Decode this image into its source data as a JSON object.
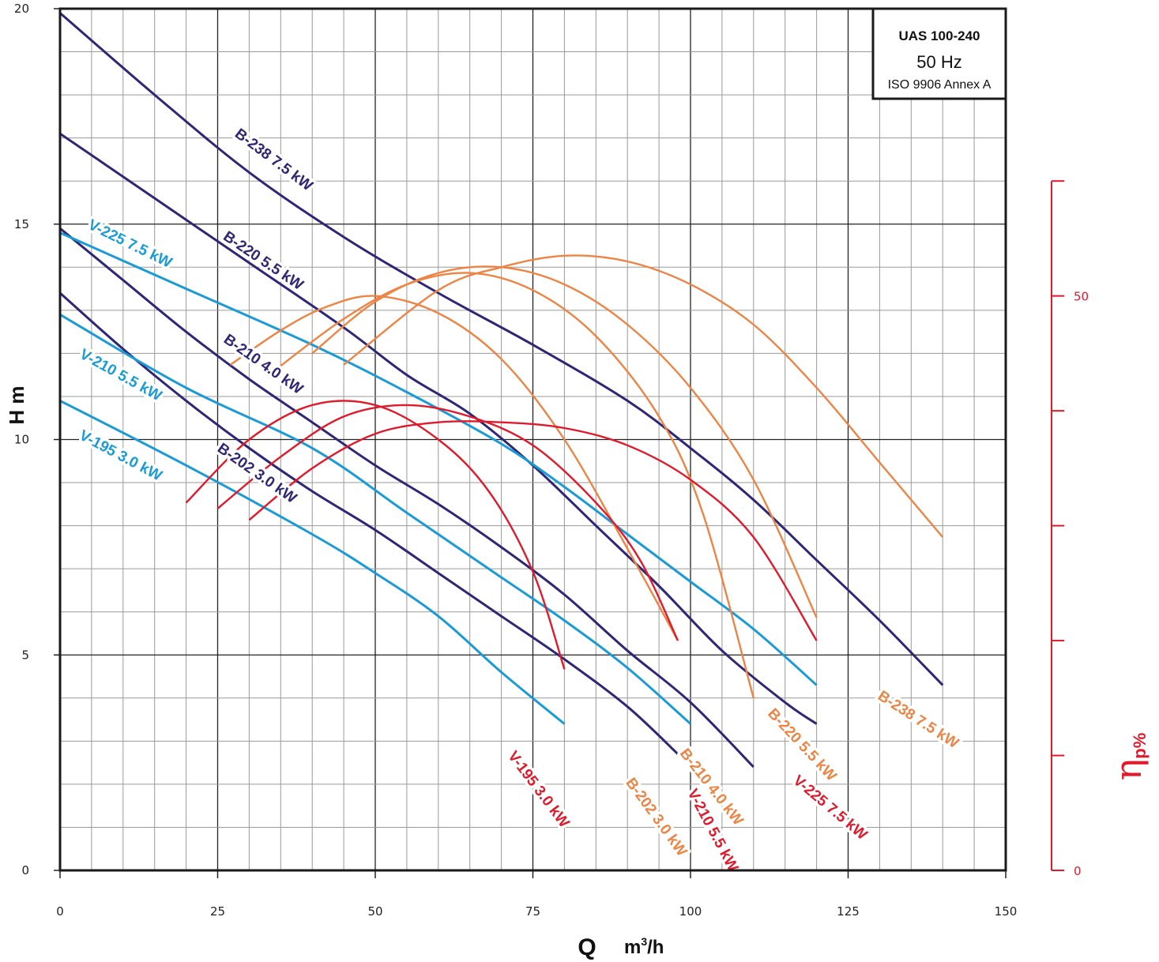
{
  "chart_data": {
    "type": "line",
    "info_box": {
      "model": "UAS 100-240",
      "frequency": "50 Hz",
      "standard": "ISO 9906 Annex A"
    },
    "xlabel": {
      "symbol": "Q",
      "unit": "m³/h",
      "unit_base": "m",
      "unit_sup": "3",
      "unit_rest": "/h"
    },
    "ylabel": "H m",
    "y2label": {
      "base": "η",
      "sub": "p%"
    },
    "xlim": [
      0,
      150
    ],
    "ylim": [
      0,
      20
    ],
    "y2lim": [
      0,
      60
    ],
    "x_ticks": [
      "0",
      "25",
      "50",
      "75",
      "100",
      "125",
      "150"
    ],
    "y_ticks": [
      "0",
      "5",
      "10",
      "15",
      "20"
    ],
    "y2_ticks": [
      "0",
      "50"
    ],
    "grid": true,
    "colors": {
      "B_head": "#2e2777",
      "V_head": "#1a9bd7",
      "B_eff": "#ee8444",
      "V_eff": "#e01a2b"
    },
    "head_curves": [
      {
        "name": "B-238 7.5 kW",
        "color": "#2e2777",
        "x": [
          0,
          15,
          30,
          45,
          60,
          75,
          90,
          100,
          110,
          120,
          130,
          140
        ],
        "y": [
          19.9,
          18.0,
          16.2,
          14.7,
          13.4,
          12.2,
          10.9,
          9.8,
          8.6,
          7.2,
          5.8,
          4.3
        ]
      },
      {
        "name": "B-220 5.5 kW",
        "color": "#2e2777",
        "x": [
          0,
          15,
          30,
          45,
          55,
          65,
          75,
          85,
          95,
          105,
          115,
          120
        ],
        "y": [
          17.1,
          15.6,
          14.1,
          12.6,
          11.5,
          10.6,
          9.4,
          8.0,
          6.6,
          5.1,
          3.9,
          3.4
        ]
      },
      {
        "name": "B-210 4.0 kW",
        "color": "#2e2777",
        "x": [
          0,
          10,
          20,
          30,
          40,
          50,
          60,
          70,
          80,
          90,
          100,
          110
        ],
        "y": [
          14.9,
          13.7,
          12.5,
          11.4,
          10.4,
          9.4,
          8.5,
          7.5,
          6.4,
          5.1,
          3.9,
          2.4
        ]
      },
      {
        "name": "B-202 3.0 kW",
        "color": "#2e2777",
        "x": [
          0,
          10,
          20,
          30,
          40,
          50,
          60,
          70,
          80,
          90,
          98
        ],
        "y": [
          13.4,
          12.1,
          10.9,
          9.8,
          8.8,
          7.9,
          6.9,
          5.9,
          4.9,
          3.8,
          2.7
        ]
      },
      {
        "name": "V-225 7.5 kW",
        "color": "#1a9bd7",
        "x": [
          0,
          20,
          40,
          55,
          70,
          80,
          90,
          100,
          110,
          120
        ],
        "y": [
          14.8,
          13.5,
          12.2,
          11.1,
          9.9,
          8.9,
          7.8,
          6.7,
          5.6,
          4.3
        ]
      },
      {
        "name": "V-210 5.5 kW",
        "color": "#1a9bd7",
        "x": [
          0,
          20,
          40,
          55,
          70,
          80,
          90,
          100
        ],
        "y": [
          12.9,
          11.2,
          9.8,
          8.3,
          6.8,
          5.8,
          4.7,
          3.4
        ]
      },
      {
        "name": "V-195 3.0 kW",
        "color": "#1a9bd7",
        "x": [
          0,
          20,
          40,
          50,
          60,
          70,
          80
        ],
        "y": [
          10.9,
          9.4,
          7.8,
          6.9,
          5.9,
          4.6,
          3.4
        ]
      }
    ],
    "efficiency_curves": [
      {
        "name": "B-238 7.5 kW",
        "color": "#ee8444",
        "x": [
          45,
          60,
          70,
          80,
          90,
          100,
          110,
          120,
          130,
          140
        ],
        "y": [
          44.0,
          50.5,
          52.5,
          53.5,
          53.0,
          51.0,
          47.5,
          42.0,
          35.5,
          29.0
        ]
      },
      {
        "name": "B-220 5.5 kW",
        "color": "#ee8444",
        "x": [
          40,
          50,
          60,
          70,
          80,
          90,
          100,
          110,
          120
        ],
        "y": [
          45.0,
          49.5,
          52.0,
          52.5,
          51.0,
          47.5,
          42.0,
          34.0,
          22.0
        ]
      },
      {
        "name": "B-210 4.0 kW",
        "color": "#ee8444",
        "x": [
          34,
          45,
          55,
          65,
          75,
          85,
          95,
          102,
          110
        ],
        "y": [
          43.5,
          48.0,
          51.0,
          52.0,
          50.5,
          46.5,
          39.5,
          31.0,
          15.0
        ]
      },
      {
        "name": "B-202 3.0 kW",
        "color": "#ee8444",
        "x": [
          27,
          35,
          42,
          50,
          60,
          70,
          80,
          90,
          98
        ],
        "y": [
          44.0,
          47.0,
          49.0,
          50.0,
          48.5,
          44.5,
          37.5,
          28.0,
          20.0
        ]
      },
      {
        "name": "V-225 7.5 kW",
        "color": "#e01a2b",
        "x": [
          30,
          40,
          50,
          60,
          70,
          80,
          90,
          100,
          110,
          120
        ],
        "y": [
          30.5,
          35.0,
          38.0,
          39.0,
          39.0,
          38.5,
          37.0,
          34.0,
          29.0,
          20.0
        ]
      },
      {
        "name": "V-210 5.5 kW",
        "color": "#e01a2b",
        "x": [
          25,
          35,
          45,
          55,
          65,
          75,
          85,
          92,
          98
        ],
        "y": [
          31.5,
          36.0,
          39.5,
          40.5,
          39.5,
          37.0,
          32.0,
          27.0,
          20.0
        ]
      },
      {
        "name": "V-195 3.0 kW",
        "color": "#e01a2b",
        "x": [
          20,
          30,
          40,
          50,
          60,
          68,
          75,
          80
        ],
        "y": [
          32.0,
          37.5,
          40.5,
          40.5,
          37.5,
          33.0,
          26.0,
          17.5
        ]
      }
    ]
  }
}
